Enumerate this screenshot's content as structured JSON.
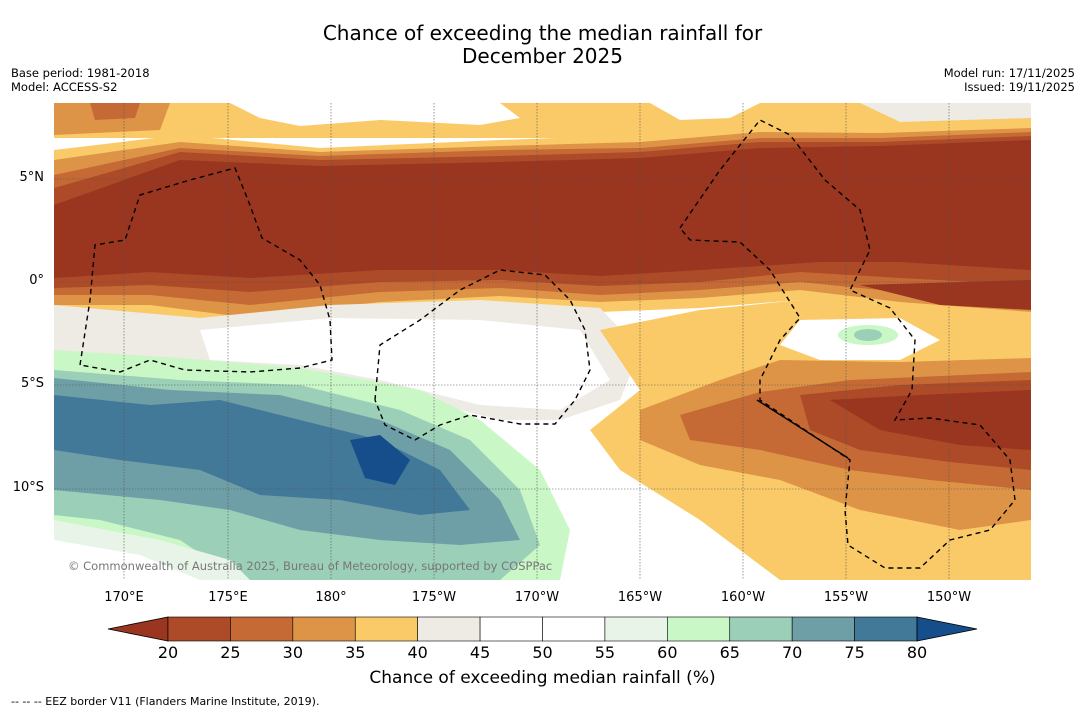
{
  "title_line1": "Chance of exceeding the median rainfall for",
  "title_line2": "December 2025",
  "base_period": "Base period: 1981-2018",
  "model": "Model: ACCESS-S2",
  "model_run": "Model run: 17/11/2025",
  "issued": "Issued: 19/11/2025",
  "copyright": "© Commonwealth of Australia 2025, Bureau of Meteorology, supported by COSPPac",
  "lat_labels": [
    "5°N",
    "0°",
    "5°S",
    "10°S"
  ],
  "lon_labels": [
    "170°E",
    "175°E",
    "180°",
    "175°W",
    "170°W",
    "165°W",
    "160°W",
    "155°W",
    "150°W"
  ],
  "colorbar": {
    "ticks": [
      "20",
      "25",
      "30",
      "35",
      "40",
      "45",
      "50",
      "55",
      "60",
      "65",
      "70",
      "75",
      "80"
    ],
    "colors": [
      "#9a3520",
      "#ad4a28",
      "#c56a35",
      "#de9446",
      "#fbca68",
      "#eeeae4",
      "#ffffff",
      "#ffffff",
      "#e9f4e8",
      "#c9f7c6",
      "#9bcfb8",
      "#6e9fa7",
      "#427898",
      "#154e8a"
    ],
    "title": "Chance of exceeding median rainfall (%)"
  },
  "footer": "--  --  -- EEZ border V11 (Flanders Marine Institute, 2019)."
}
